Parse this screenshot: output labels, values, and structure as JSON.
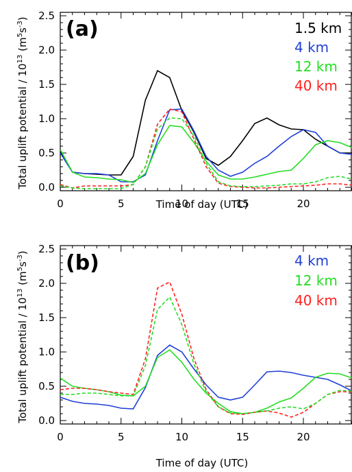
{
  "chart_data": [
    {
      "type": "line",
      "panel_label": "(a)",
      "xlabel": "Time of day (UTC)",
      "ylabel": "Total uplift potential / 10",
      "ylabel_exp": "13",
      "ylabel_units": "(m",
      "ylabel_units_exp1": "5",
      "ylabel_units_mid": "s",
      "ylabel_units_exp2": "-3",
      "ylabel_units_end": ")",
      "xlim": [
        0,
        24
      ],
      "ylim": [
        -0.05,
        2.55
      ],
      "xticks": [
        "0",
        "5",
        "10",
        "15",
        "20"
      ],
      "yticks": [
        "0.0",
        "0.5",
        "1.0",
        "1.5",
        "2.0",
        "2.5"
      ],
      "legend_position": "top-right",
      "series": [
        {
          "name": "1.5 km",
          "color": "#000000",
          "dash": "solid",
          "x": [
            0,
            1,
            2,
            3,
            4,
            5,
            6,
            7,
            8,
            9,
            10,
            11,
            12,
            13,
            14,
            15,
            16,
            17,
            18,
            19,
            20,
            21,
            22,
            23,
            24
          ],
          "values": [
            0.52,
            0.22,
            0.2,
            0.19,
            0.18,
            0.18,
            0.45,
            1.27,
            1.7,
            1.6,
            1.12,
            0.8,
            0.42,
            0.32,
            0.45,
            0.68,
            0.93,
            1.01,
            0.91,
            0.85,
            0.84,
            0.7,
            0.6,
            0.5,
            0.5
          ]
        },
        {
          "name": "4 km",
          "color": "#1f3fd8",
          "dash": "solid",
          "x": [
            0,
            1,
            2,
            3,
            4,
            5,
            6,
            7,
            8,
            9,
            10,
            11,
            12,
            13,
            14,
            15,
            16,
            17,
            18,
            19,
            20,
            21,
            22,
            23,
            24
          ],
          "values": [
            0.5,
            0.22,
            0.2,
            0.2,
            0.18,
            0.08,
            0.08,
            0.18,
            0.68,
            1.13,
            1.14,
            0.82,
            0.45,
            0.25,
            0.16,
            0.22,
            0.35,
            0.45,
            0.6,
            0.74,
            0.84,
            0.8,
            0.6,
            0.5,
            0.48
          ]
        },
        {
          "name": "12 km",
          "color": "#22dd22",
          "dash": "solid",
          "x": [
            0,
            1,
            2,
            3,
            4,
            5,
            6,
            7,
            8,
            9,
            10,
            11,
            12,
            13,
            14,
            15,
            16,
            17,
            18,
            19,
            20,
            21,
            22,
            23,
            24
          ],
          "values": [
            0.55,
            0.22,
            0.15,
            0.14,
            0.12,
            0.11,
            0.07,
            0.2,
            0.62,
            0.9,
            0.88,
            0.65,
            0.38,
            0.18,
            0.12,
            0.12,
            0.15,
            0.19,
            0.23,
            0.25,
            0.42,
            0.62,
            0.68,
            0.65,
            0.58
          ]
        },
        {
          "name": "40 km",
          "color": "#ff2020",
          "dash": "dashed",
          "x": [
            0,
            1,
            2,
            3,
            4,
            5,
            6,
            7,
            8,
            9,
            10,
            11,
            12,
            13,
            14,
            15,
            16,
            17,
            18,
            19,
            20,
            21,
            22,
            23,
            24
          ],
          "values": [
            0.04,
            -0.01,
            0.02,
            0.02,
            0.02,
            0.02,
            0.04,
            0.3,
            0.92,
            1.14,
            1.1,
            0.7,
            0.3,
            0.06,
            0.01,
            0.0,
            -0.01,
            -0.01,
            0.0,
            0.01,
            0.02,
            0.03,
            0.05,
            0.05,
            0.03
          ]
        },
        {
          "name": "12 km dashed",
          "color": "#22dd22",
          "dash": "dashed",
          "x": [
            0,
            1,
            2,
            3,
            4,
            5,
            6,
            7,
            8,
            9,
            10,
            11,
            12,
            13,
            14,
            15,
            16,
            17,
            18,
            19,
            20,
            21,
            22,
            23,
            24
          ],
          "values": [
            0.02,
            -0.01,
            -0.02,
            -0.02,
            -0.02,
            -0.02,
            0.04,
            0.3,
            0.85,
            1.01,
            1.0,
            0.75,
            0.35,
            0.08,
            0.02,
            0.01,
            0.01,
            0.02,
            0.03,
            0.05,
            0.05,
            0.08,
            0.14,
            0.16,
            0.12
          ]
        }
      ]
    },
    {
      "type": "line",
      "panel_label": "(b)",
      "xlabel": "Time of day (UTC)",
      "ylabel": "Total uplift potential / 10",
      "ylabel_exp": "13",
      "ylabel_units": "(m",
      "ylabel_units_exp1": "5",
      "ylabel_units_mid": "s",
      "ylabel_units_exp2": "-3",
      "ylabel_units_end": ")",
      "xlim": [
        0,
        24
      ],
      "ylim": [
        -0.05,
        2.55
      ],
      "xticks": [
        "0",
        "5",
        "10",
        "15",
        "20"
      ],
      "yticks": [
        "0.0",
        "0.5",
        "1.0",
        "1.5",
        "2.0",
        "2.5"
      ],
      "legend_position": "top-right",
      "series": [
        {
          "name": "4 km",
          "color": "#1f3fd8",
          "dash": "solid",
          "x": [
            0,
            1,
            2,
            3,
            4,
            5,
            6,
            7,
            8,
            9,
            10,
            11,
            12,
            13,
            14,
            15,
            16,
            17,
            18,
            19,
            20,
            21,
            22,
            23,
            24
          ],
          "values": [
            0.34,
            0.28,
            0.25,
            0.24,
            0.22,
            0.18,
            0.17,
            0.48,
            0.95,
            1.1,
            1.0,
            0.75,
            0.52,
            0.34,
            0.3,
            0.34,
            0.52,
            0.71,
            0.72,
            0.7,
            0.66,
            0.63,
            0.6,
            0.52,
            0.43
          ]
        },
        {
          "name": "12 km",
          "color": "#22dd22",
          "dash": "solid",
          "x": [
            0,
            1,
            2,
            3,
            4,
            5,
            6,
            7,
            8,
            9,
            10,
            11,
            12,
            13,
            14,
            15,
            16,
            17,
            18,
            19,
            20,
            21,
            22,
            23,
            24
          ],
          "values": [
            0.62,
            0.5,
            0.47,
            0.45,
            0.42,
            0.37,
            0.36,
            0.5,
            0.92,
            1.03,
            0.85,
            0.6,
            0.4,
            0.25,
            0.13,
            0.1,
            0.12,
            0.18,
            0.27,
            0.33,
            0.47,
            0.63,
            0.69,
            0.68,
            0.62
          ]
        },
        {
          "name": "40 km",
          "color": "#ff2020",
          "dash": "dashed",
          "x": [
            0,
            1,
            2,
            3,
            4,
            5,
            6,
            7,
            8,
            9,
            10,
            11,
            12,
            13,
            14,
            15,
            16,
            17,
            18,
            19,
            20,
            21,
            22,
            23,
            24
          ],
          "values": [
            0.45,
            0.47,
            0.47,
            0.45,
            0.42,
            0.4,
            0.38,
            0.9,
            1.93,
            2.02,
            1.55,
            0.9,
            0.45,
            0.2,
            0.1,
            0.09,
            0.12,
            0.14,
            0.11,
            0.05,
            0.12,
            0.25,
            0.38,
            0.42,
            0.42
          ]
        },
        {
          "name": "12 km dashed",
          "color": "#22dd22",
          "dash": "dashed",
          "x": [
            0,
            1,
            2,
            3,
            4,
            5,
            6,
            7,
            8,
            9,
            10,
            11,
            12,
            13,
            14,
            15,
            16,
            17,
            18,
            19,
            20,
            21,
            22,
            23,
            24
          ],
          "values": [
            0.38,
            0.38,
            0.4,
            0.4,
            0.38,
            0.36,
            0.36,
            0.8,
            1.62,
            1.8,
            1.4,
            0.82,
            0.42,
            0.2,
            0.11,
            0.1,
            0.12,
            0.14,
            0.18,
            0.2,
            0.17,
            0.25,
            0.38,
            0.44,
            0.43
          ]
        }
      ]
    }
  ]
}
